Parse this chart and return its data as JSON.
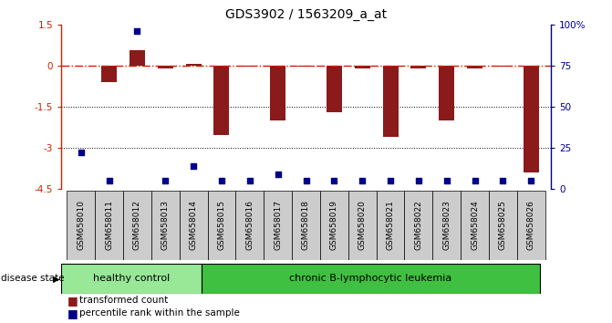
{
  "title": "GDS3902 / 1563209_a_at",
  "samples": [
    "GSM658010",
    "GSM658011",
    "GSM658012",
    "GSM658013",
    "GSM658014",
    "GSM658015",
    "GSM658016",
    "GSM658017",
    "GSM658018",
    "GSM658019",
    "GSM658020",
    "GSM658021",
    "GSM658022",
    "GSM658023",
    "GSM658024",
    "GSM658025",
    "GSM658026"
  ],
  "red_values": [
    0.0,
    -0.6,
    0.55,
    -0.1,
    0.05,
    -2.55,
    -0.05,
    -2.0,
    -0.05,
    -1.7,
    -0.1,
    -2.6,
    -0.1,
    -2.0,
    -0.1,
    -0.05,
    -3.9
  ],
  "blue_pct": [
    22,
    5,
    96,
    5,
    14,
    5,
    5,
    9,
    5,
    5,
    5,
    5,
    5,
    5,
    5,
    5,
    5
  ],
  "group1_label": "healthy control",
  "group2_label": "chronic B-lymphocytic leukemia",
  "group1_count": 5,
  "group2_count": 12,
  "bar_color": "#8b1a1a",
  "blue_color": "#00008b",
  "dashed_color": "#cc2200",
  "bg_color": "#ffffff",
  "group1_bg": "#98e898",
  "group2_bg": "#40c040",
  "tick_bg": "#cccccc",
  "ylim_left": [
    -4.5,
    1.5
  ],
  "ylim_right": [
    0,
    100
  ],
  "yticks_left": [
    1.5,
    0.0,
    -1.5,
    -3.0,
    -4.5
  ],
  "ytick_labels_left": [
    "1.5",
    "0",
    "-1.5",
    "-3",
    "-4.5"
  ],
  "yticks_right": [
    0,
    25,
    50,
    75,
    100
  ],
  "ytick_labels_right": [
    "0",
    "25",
    "50",
    "75",
    "100%"
  ],
  "legend_red": "transformed count",
  "legend_blue": "percentile rank within the sample",
  "bar_width": 0.55
}
